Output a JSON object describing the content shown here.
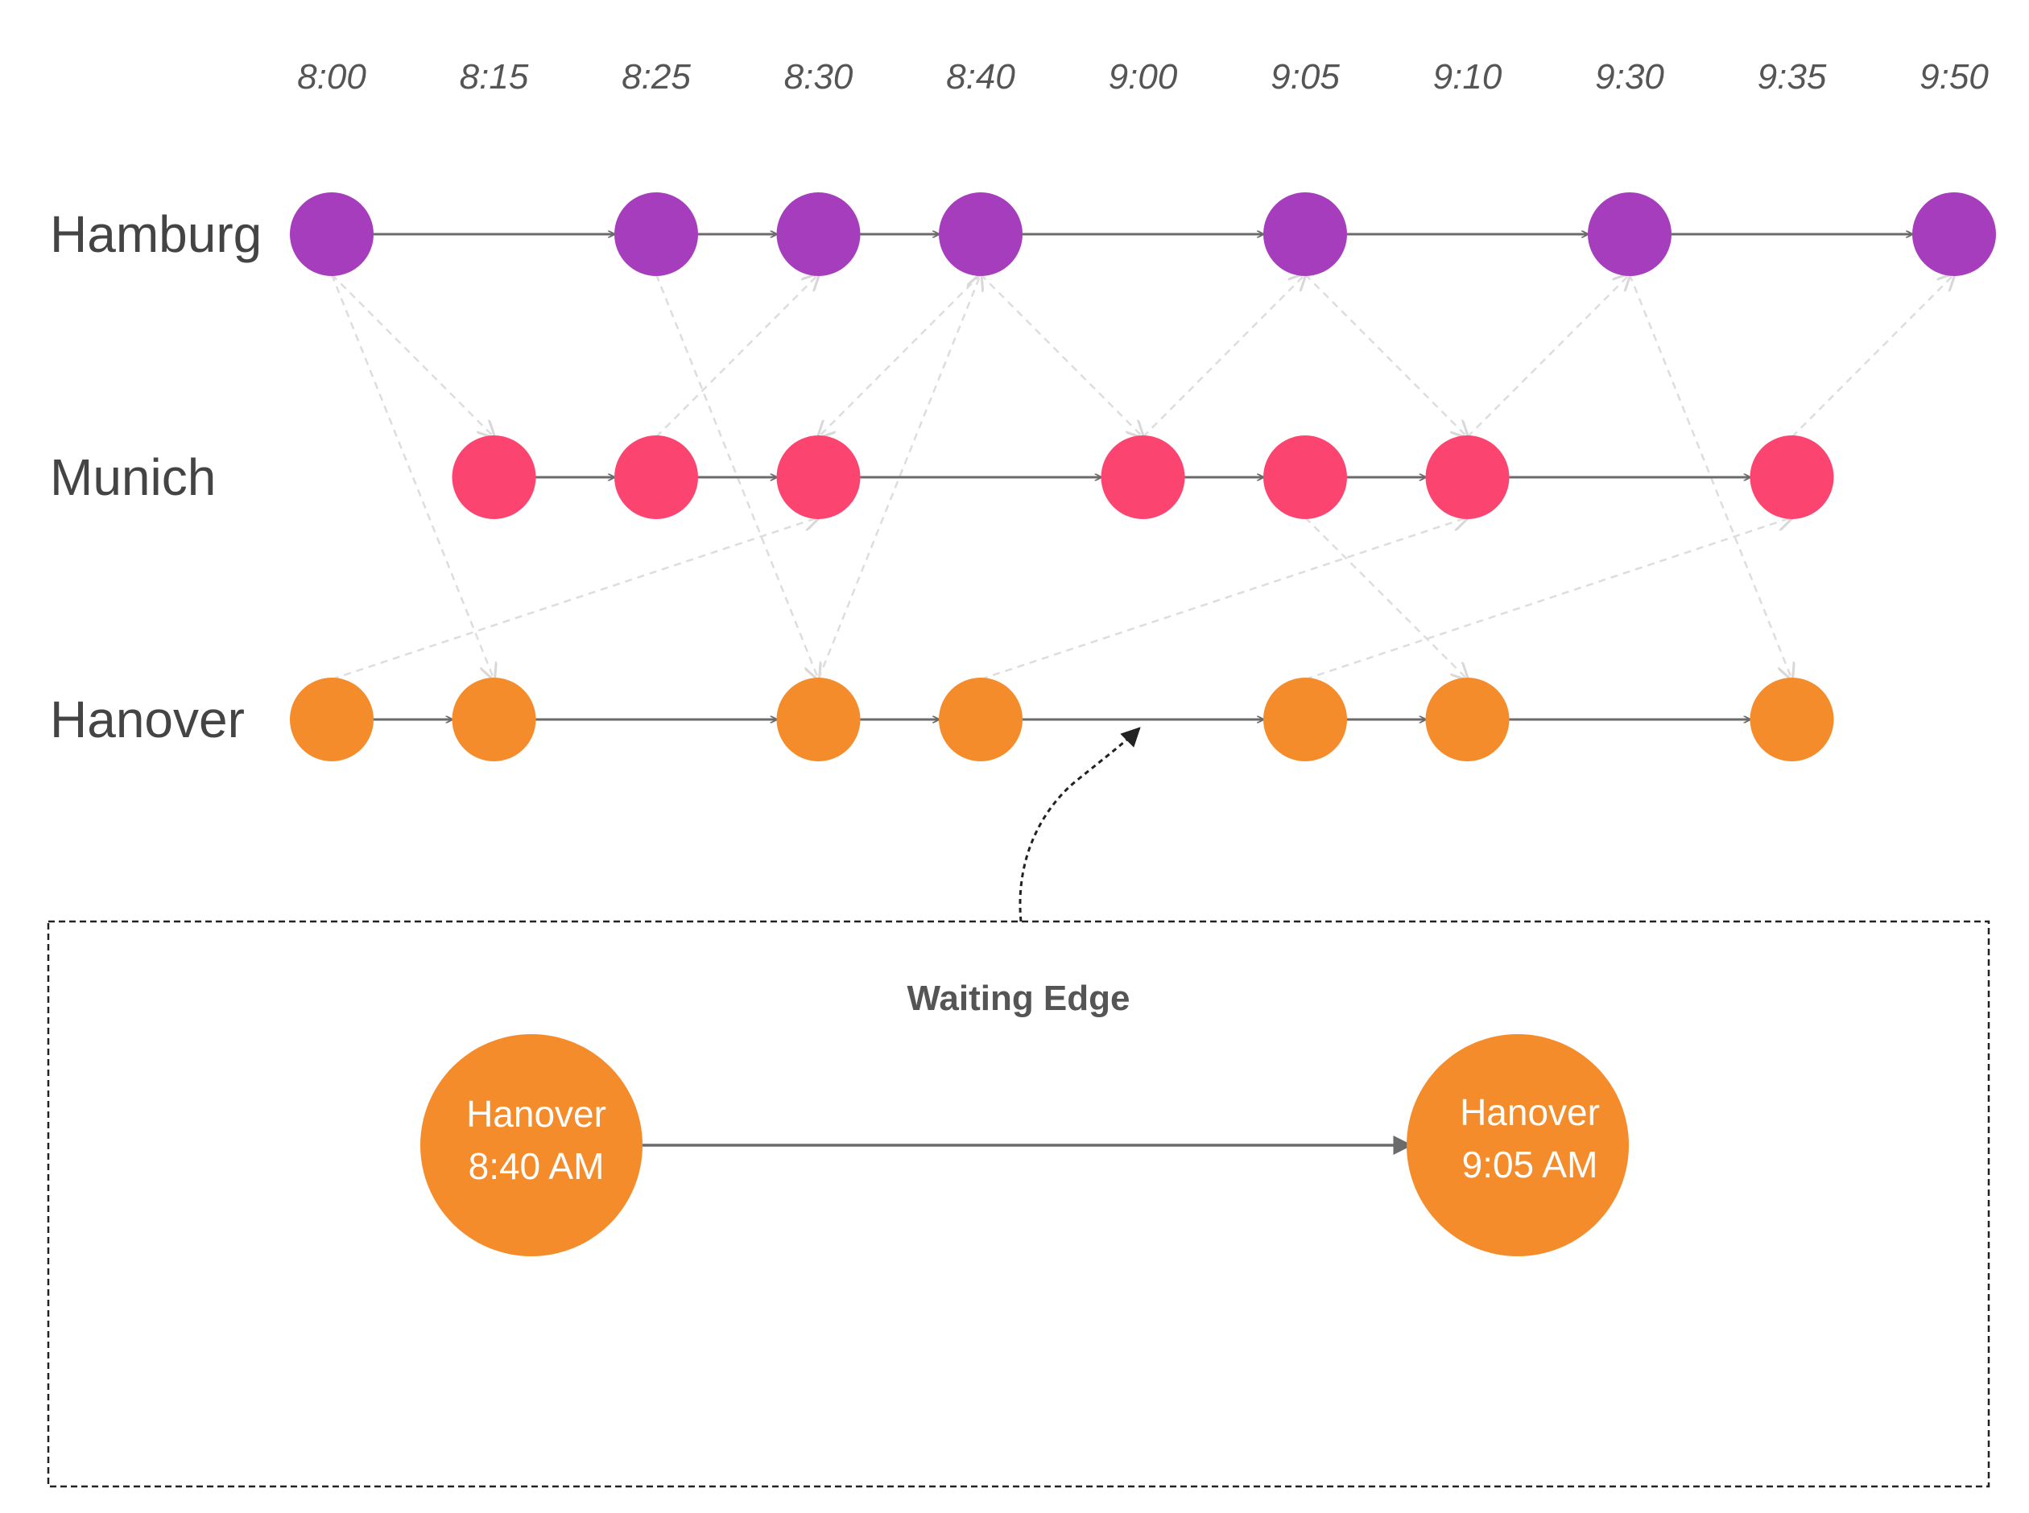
{
  "times": [
    "8:00",
    "8:15",
    "8:25",
    "8:30",
    "8:40",
    "9:00",
    "9:05",
    "9:10",
    "9:30",
    "9:35",
    "9:50"
  ],
  "colors": {
    "Hamburg": "#a63dbd",
    "Munich": "#fb4570",
    "Hanover": "#f48c2c",
    "waiting_edge": "#6b6b6b",
    "transfer_edge": "#dddddd"
  },
  "cities": [
    {
      "name": "Hamburg",
      "times": [
        "8:00",
        "8:25",
        "8:30",
        "8:40",
        "9:05",
        "9:30",
        "9:50"
      ]
    },
    {
      "name": "Munich",
      "times": [
        "8:15",
        "8:25",
        "8:30",
        "9:00",
        "9:05",
        "9:10",
        "9:35"
      ]
    },
    {
      "name": "Hanover",
      "times": [
        "8:00",
        "8:15",
        "8:30",
        "8:40",
        "9:05",
        "9:10",
        "9:35"
      ]
    }
  ],
  "transfer_edges": [
    {
      "from": [
        "Hamburg",
        "8:00"
      ],
      "to": [
        "Munich",
        "8:15"
      ]
    },
    {
      "from": [
        "Hamburg",
        "8:00"
      ],
      "to": [
        "Hanover",
        "8:15"
      ]
    },
    {
      "from": [
        "Hamburg",
        "8:25"
      ],
      "to": [
        "Hanover",
        "8:30"
      ]
    },
    {
      "from": [
        "Munich",
        "8:25"
      ],
      "to": [
        "Hamburg",
        "8:30"
      ]
    },
    {
      "from": [
        "Hamburg",
        "8:40"
      ],
      "to": [
        "Munich",
        "8:30"
      ]
    },
    {
      "from": [
        "Hanover",
        "8:30"
      ],
      "to": [
        "Hamburg",
        "8:40"
      ]
    },
    {
      "from": [
        "Hamburg",
        "8:40"
      ],
      "to": [
        "Munich",
        "9:00"
      ]
    },
    {
      "from": [
        "Munich",
        "9:00"
      ],
      "to": [
        "Hamburg",
        "9:05"
      ]
    },
    {
      "from": [
        "Hamburg",
        "9:05"
      ],
      "to": [
        "Munich",
        "9:10"
      ]
    },
    {
      "from": [
        "Munich",
        "9:10"
      ],
      "to": [
        "Hamburg",
        "9:30"
      ]
    },
    {
      "from": [
        "Hamburg",
        "9:30"
      ],
      "to": [
        "Hanover",
        "9:35"
      ]
    },
    {
      "from": [
        "Munich",
        "9:35"
      ],
      "to": [
        "Hamburg",
        "9:50"
      ]
    },
    {
      "from": [
        "Hanover",
        "8:00"
      ],
      "to": [
        "Munich",
        "8:30"
      ]
    },
    {
      "from": [
        "Munich",
        "9:05"
      ],
      "to": [
        "Hanover",
        "9:10"
      ]
    },
    {
      "from": [
        "Hanover",
        "8:40"
      ],
      "to": [
        "Munich",
        "9:10"
      ]
    },
    {
      "from": [
        "Hanover",
        "9:05"
      ],
      "to": [
        "Munich",
        "9:35"
      ]
    }
  ],
  "inset": {
    "title": "Waiting Edge",
    "from_node": {
      "line1": "Hanover",
      "line2": "8:40 AM"
    },
    "to_node": {
      "line1": "Hanover",
      "line2": "9:05 AM"
    }
  }
}
